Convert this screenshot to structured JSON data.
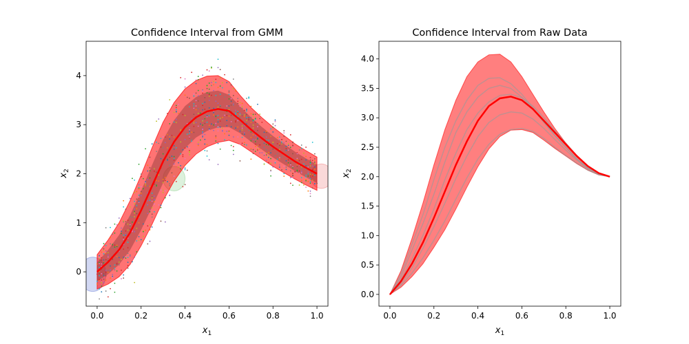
{
  "chart_data": [
    {
      "type": "line",
      "title": "Confidence Interval from GMM",
      "xlabel": "x1",
      "ylabel": "x2",
      "xlim": [
        -0.05,
        1.05
      ],
      "ylim": [
        -0.7,
        4.7
      ],
      "xticks": [
        "0.0",
        "0.2",
        "0.4",
        "0.6",
        "0.8",
        "1.0"
      ],
      "yticks": [
        "0",
        "1",
        "2",
        "3",
        "4"
      ],
      "mean_curve": {
        "x": [
          0.0,
          0.05,
          0.1,
          0.15,
          0.2,
          0.25,
          0.3,
          0.35,
          0.4,
          0.45,
          0.5,
          0.55,
          0.6,
          0.65,
          0.7,
          0.75,
          0.8,
          0.85,
          0.9,
          0.95,
          1.0
        ],
        "y": [
          0.0,
          0.2,
          0.45,
          0.8,
          1.25,
          1.75,
          2.25,
          2.65,
          2.95,
          3.15,
          3.27,
          3.32,
          3.28,
          3.1,
          2.9,
          2.72,
          2.55,
          2.4,
          2.25,
          2.12,
          2.0
        ]
      },
      "band_halfwidth": [
        0.35,
        0.45,
        0.55,
        0.65,
        0.72,
        0.78,
        0.8,
        0.8,
        0.78,
        0.75,
        0.72,
        0.68,
        0.6,
        0.5,
        0.45,
        0.42,
        0.4,
        0.38,
        0.36,
        0.35,
        0.34
      ],
      "ellipses": [
        {
          "cx": -0.02,
          "cy": -0.05,
          "rx": 0.06,
          "ry": 0.35,
          "color": "#6b7fd7"
        },
        {
          "cx": 1.02,
          "cy": 1.95,
          "rx": 0.05,
          "ry": 0.25,
          "color": "#f08080"
        },
        {
          "cx": 0.35,
          "cy": 1.9,
          "rx": 0.05,
          "ry": 0.25,
          "color": "#8fd18f"
        }
      ],
      "colors": {
        "band": "#ff0000",
        "mean": "#ff0000",
        "band_dark": "#8b3a3a"
      }
    },
    {
      "type": "line",
      "title": "Confidence Interval from Raw Data",
      "xlabel": "x1",
      "ylabel": "x2",
      "xlim": [
        -0.05,
        1.05
      ],
      "ylim": [
        -0.2,
        4.3
      ],
      "xticks": [
        "0.0",
        "0.2",
        "0.4",
        "0.6",
        "0.8",
        "1.0"
      ],
      "yticks": [
        "0.0",
        "0.5",
        "1.0",
        "1.5",
        "2.0",
        "2.5",
        "3.0",
        "3.5",
        "4.0"
      ],
      "mean_curve": {
        "x": [
          0.0,
          0.05,
          0.1,
          0.15,
          0.2,
          0.25,
          0.3,
          0.35,
          0.4,
          0.45,
          0.5,
          0.55,
          0.6,
          0.65,
          0.7,
          0.75,
          0.8,
          0.85,
          0.9,
          0.95,
          1.0
        ],
        "y": [
          0.0,
          0.22,
          0.52,
          0.88,
          1.3,
          1.75,
          2.2,
          2.6,
          2.95,
          3.2,
          3.33,
          3.36,
          3.3,
          3.15,
          2.95,
          2.75,
          2.55,
          2.35,
          2.18,
          2.06,
          2.0
        ]
      },
      "upper_curve": {
        "y": [
          0.0,
          0.4,
          0.95,
          1.55,
          2.2,
          2.8,
          3.3,
          3.7,
          3.95,
          4.07,
          4.08,
          3.95,
          3.7,
          3.4,
          3.1,
          2.82,
          2.57,
          2.35,
          2.17,
          2.05,
          2.0
        ]
      },
      "lower_curve": {
        "y": [
          0.0,
          0.12,
          0.3,
          0.52,
          0.8,
          1.1,
          1.45,
          1.82,
          2.17,
          2.47,
          2.68,
          2.79,
          2.8,
          2.75,
          2.62,
          2.48,
          2.35,
          2.22,
          2.11,
          2.03,
          2.0
        ]
      },
      "grey_curves": [
        {
          "y": [
            0.0,
            0.3,
            0.75,
            1.2,
            1.7,
            2.25,
            2.75,
            3.1,
            3.35,
            3.5,
            3.55,
            3.5,
            3.35,
            3.15,
            2.92,
            2.7,
            2.5,
            2.3,
            2.15,
            2.05,
            2.0
          ]
        },
        {
          "y": [
            0.0,
            0.35,
            0.85,
            1.35,
            1.95,
            2.5,
            2.95,
            3.3,
            3.55,
            3.67,
            3.68,
            3.58,
            3.4,
            3.17,
            2.93,
            2.7,
            2.5,
            2.3,
            2.15,
            2.05,
            2.0
          ]
        },
        {
          "y": [
            0.0,
            0.25,
            0.6,
            1.0,
            1.45,
            1.95,
            2.4,
            2.8,
            3.08,
            3.27,
            3.38,
            3.4,
            3.34,
            3.2,
            3.0,
            2.78,
            2.57,
            2.36,
            2.18,
            2.06,
            2.0
          ]
        },
        {
          "y": [
            0.0,
            0.18,
            0.45,
            0.78,
            1.15,
            1.55,
            1.97,
            2.35,
            2.68,
            2.92,
            3.05,
            3.1,
            3.08,
            2.98,
            2.82,
            2.63,
            2.45,
            2.28,
            2.13,
            2.04,
            2.0
          ]
        },
        {
          "y": [
            0.0,
            0.15,
            0.36,
            0.62,
            0.92,
            1.25,
            1.62,
            1.98,
            2.3,
            2.55,
            2.72,
            2.8,
            2.82,
            2.77,
            2.65,
            2.5,
            2.36,
            2.23,
            2.11,
            2.03,
            2.0
          ]
        }
      ],
      "colors": {
        "band": "#ff0000",
        "mean": "#ff0000",
        "grey": "#999999"
      }
    }
  ]
}
